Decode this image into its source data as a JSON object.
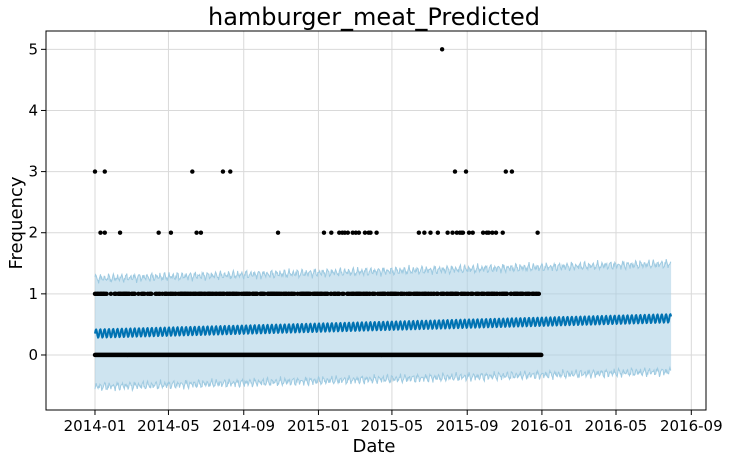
{
  "chart_data": {
    "type": "scatter",
    "title": "hamburger_meat_Predicted",
    "xlabel": "Date",
    "ylabel": "Frequency",
    "x_ticks": [
      "2014-01",
      "2014-05",
      "2014-09",
      "2015-01",
      "2015-05",
      "2015-09",
      "2016-01",
      "2016-05",
      "2016-09"
    ],
    "y_ticks": [
      "0",
      "1",
      "2",
      "3",
      "4",
      "5"
    ],
    "xlim": [
      "2013-10-13",
      "2016-09-25"
    ],
    "ylim": [
      -0.9,
      5.3
    ],
    "grid": true,
    "colors": {
      "observed": "#000000",
      "forecast_line": "#0072B2",
      "interval_fill": "#a6cee3",
      "interval_edge": "#9ecae1",
      "grid": "#d9d9d9"
    },
    "series": [
      {
        "role": "observed",
        "points_by_value": {
          "0": "daily observations, 2014-01-01 to 2015-12-31",
          "1": "frequent observations, 2014-01-01 to 2015-12-28",
          "2": [
            "2014-01-10",
            "2014-01-17",
            "2014-02-11",
            "2014-04-15",
            "2014-05-05",
            "2014-06-16",
            "2014-06-23",
            "2014-10-27",
            "2015-01-10",
            "2015-01-22",
            "2015-02-04",
            "2015-02-09",
            "2015-02-13",
            "2015-02-18",
            "2015-02-26",
            "2015-03-03",
            "2015-03-08",
            "2015-03-18",
            "2015-03-24",
            "2015-03-27",
            "2015-04-06",
            "2015-06-14",
            "2015-06-23",
            "2015-07-03",
            "2015-07-15",
            "2015-07-31",
            "2015-08-08",
            "2015-08-15",
            "2015-08-20",
            "2015-08-23",
            "2015-08-25",
            "2015-09-04",
            "2015-09-10",
            "2015-09-27",
            "2015-10-03",
            "2015-10-06",
            "2015-10-12",
            "2015-10-18",
            "2015-10-29",
            "2015-12-25"
          ],
          "3": [
            "2014-01-01",
            "2014-01-17",
            "2014-06-09",
            "2014-07-29",
            "2014-08-10",
            "2015-08-12",
            "2015-08-30",
            "2015-11-03",
            "2015-11-13"
          ],
          "5": [
            "2015-07-22"
          ]
        }
      },
      {
        "role": "forecast",
        "x_range": [
          "2014-01-01",
          "2016-07-30"
        ],
        "yhat_start": 0.35,
        "yhat_end": 0.6,
        "weekly_amplitude": 0.07,
        "lower_start": -0.52,
        "lower_end": -0.27,
        "upper_start": 1.25,
        "upper_end": 1.49
      }
    ]
  }
}
